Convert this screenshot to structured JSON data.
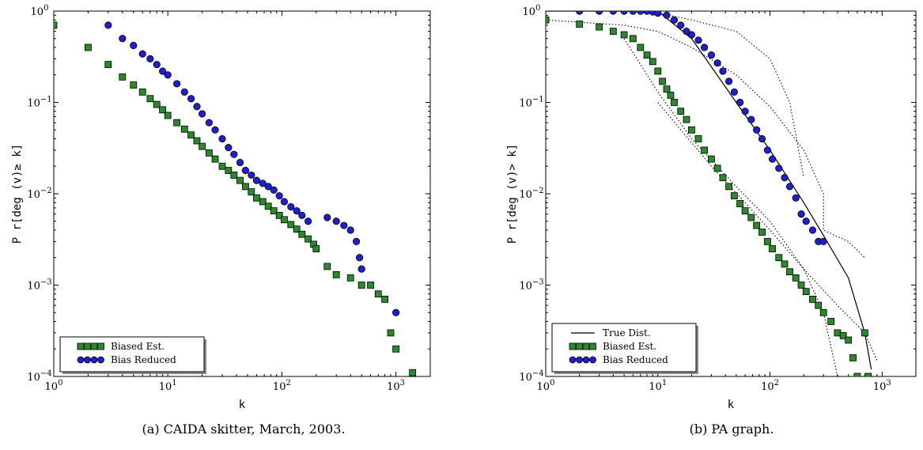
{
  "figure": {
    "panels": [
      {
        "caption": "(a) CAIDA skitter, March, 2003.",
        "chart_data": {
          "type": "scatter",
          "xscale": "log",
          "yscale": "log",
          "xlim": [
            1,
            2000
          ],
          "ylim": [
            0.0001,
            1
          ],
          "xlabel": "k",
          "ylabel": "P r[deg (v)≥ k]",
          "x_ticks": [
            1,
            10,
            100,
            1000
          ],
          "y_ticks": [
            0.0001,
            0.001,
            0.01,
            0.1,
            1
          ],
          "legend": {
            "placement": "bottom-left"
          },
          "series": [
            {
              "name": "Biased Est.",
              "marker": "square",
              "color": "#2a8a2a",
              "x": [
                1,
                2,
                3,
                4,
                5,
                6,
                7,
                8,
                9,
                10,
                12,
                14,
                16,
                18,
                20,
                23,
                26,
                30,
                34,
                38,
                43,
                48,
                54,
                60,
                68,
                76,
                85,
                95,
                105,
                120,
                135,
                150,
                170,
                190,
                200,
                250,
                300,
                400,
                500,
                600,
                700,
                800,
                900,
                1000,
                1400
              ],
              "y": [
                0.7,
                0.4,
                0.26,
                0.19,
                0.155,
                0.13,
                0.11,
                0.095,
                0.083,
                0.072,
                0.06,
                0.051,
                0.044,
                0.038,
                0.033,
                0.028,
                0.024,
                0.02,
                0.018,
                0.016,
                0.014,
                0.012,
                0.0105,
                0.009,
                0.0082,
                0.0073,
                0.0065,
                0.0058,
                0.0052,
                0.0046,
                0.0041,
                0.0036,
                0.0032,
                0.0028,
                0.0025,
                0.0016,
                0.0013,
                0.0012,
                0.001,
                0.001,
                0.0008,
                0.0007,
                0.0003,
                0.0002,
                0.00011
              ]
            },
            {
              "name": "Bias Reduced",
              "marker": "circle",
              "color": "#1f1fd0",
              "x": [
                3,
                4,
                5,
                6,
                7,
                8,
                9,
                10,
                12,
                14,
                16,
                18,
                20,
                23,
                26,
                30,
                34,
                38,
                43,
                48,
                54,
                60,
                68,
                76,
                85,
                95,
                105,
                120,
                135,
                150,
                170,
                250,
                300,
                350,
                400,
                450,
                480,
                500,
                1000
              ],
              "y": [
                0.7,
                0.5,
                0.42,
                0.34,
                0.3,
                0.26,
                0.22,
                0.2,
                0.16,
                0.13,
                0.11,
                0.09,
                0.075,
                0.06,
                0.05,
                0.04,
                0.032,
                0.027,
                0.022,
                0.018,
                0.016,
                0.014,
                0.013,
                0.012,
                0.011,
                0.0095,
                0.0082,
                0.0072,
                0.0065,
                0.0058,
                0.005,
                0.0055,
                0.005,
                0.0045,
                0.004,
                0.003,
                0.002,
                0.0015,
                0.0005
              ]
            }
          ]
        }
      },
      {
        "caption": "(b) PA graph.",
        "chart_data": {
          "type": "scatter",
          "xscale": "log",
          "yscale": "log",
          "xlim": [
            1,
            2000
          ],
          "ylim": [
            0.0001,
            1
          ],
          "xlabel": "k",
          "ylabel": "P r[deg (v)> k]",
          "x_ticks": [
            1,
            10,
            100,
            1000
          ],
          "y_ticks": [
            0.0001,
            0.001,
            0.01,
            0.1,
            1
          ],
          "legend": {
            "placement": "bottom-left"
          },
          "lines": [
            {
              "name": "True Dist.",
              "style": "solid",
              "x": [
                1,
                10,
                20,
                50,
                100,
                200,
                300,
                500,
                700,
                800
              ],
              "y": [
                1,
                1,
                0.5,
                0.1,
                0.03,
                0.008,
                0.0035,
                0.0012,
                0.0003,
                0.00012
              ]
            },
            {
              "name": "",
              "style": "dotted",
              "x": [
                1,
                5,
                10,
                20,
                50,
                100,
                200,
                300,
                300,
                500,
                700
              ],
              "y": [
                0.8,
                0.7,
                0.6,
                0.4,
                0.2,
                0.09,
                0.03,
                0.01,
                0.004,
                0.003,
                0.002
              ]
            },
            {
              "name": "",
              "style": "dotted",
              "x": [
                1,
                5,
                10,
                20,
                50,
                100,
                150,
                200
              ],
              "y": [
                1,
                1,
                0.95,
                0.8,
                0.6,
                0.3,
                0.1,
                0.015
              ]
            },
            {
              "name": "",
              "style": "dotted",
              "x": [
                5,
                10,
                20,
                50,
                100,
                200,
                300,
                400
              ],
              "y": [
                0.5,
                0.13,
                0.04,
                0.012,
                0.005,
                0.0015,
                0.0005,
                0.0001
              ]
            },
            {
              "name": "",
              "style": "dotted",
              "x": [
                10,
                30,
                60,
                100,
                200,
                400,
                700,
                900
              ],
              "y": [
                0.1,
                0.02,
                0.008,
                0.004,
                0.0015,
                0.0006,
                0.0003,
                0.00015
              ]
            }
          ],
          "series": [
            {
              "name": "Biased Est.",
              "marker": "square",
              "color": "#2a8a2a",
              "x": [
                1,
                2,
                3,
                4,
                5,
                6,
                7,
                8,
                9,
                10,
                11,
                12,
                13,
                14,
                16,
                18,
                20,
                23,
                26,
                30,
                34,
                38,
                43,
                48,
                54,
                60,
                68,
                76,
                85,
                95,
                105,
                120,
                135,
                150,
                170,
                190,
                210,
                240,
                270,
                300,
                350,
                400,
                450,
                500,
                550,
                600,
                700,
                750
              ],
              "y": [
                0.8,
                0.72,
                0.67,
                0.6,
                0.55,
                0.5,
                0.4,
                0.33,
                0.28,
                0.22,
                0.17,
                0.14,
                0.12,
                0.1,
                0.08,
                0.065,
                0.05,
                0.04,
                0.03,
                0.024,
                0.019,
                0.015,
                0.012,
                0.0095,
                0.0078,
                0.0065,
                0.0055,
                0.0045,
                0.0038,
                0.003,
                0.0025,
                0.002,
                0.0017,
                0.0014,
                0.0012,
                0.001,
                0.00085,
                0.0007,
                0.0006,
                0.0005,
                0.0004,
                0.0003,
                0.00028,
                0.00025,
                0.00016,
                0.0001,
                0.0003,
                0.0001
              ]
            },
            {
              "name": "Bias Reduced",
              "marker": "circle",
              "color": "#1f1fd0",
              "x": [
                2,
                3,
                4,
                5,
                6,
                7,
                8,
                9,
                10,
                12,
                14,
                16,
                18,
                20,
                23,
                26,
                30,
                34,
                38,
                43,
                48,
                54,
                60,
                68,
                76,
                85,
                95,
                105,
                120,
                135,
                150,
                170,
                190,
                210,
                240,
                270,
                300
              ],
              "y": [
                1,
                1,
                1,
                1,
                1,
                1,
                1,
                0.98,
                0.95,
                0.9,
                0.8,
                0.7,
                0.6,
                0.55,
                0.48,
                0.4,
                0.33,
                0.27,
                0.22,
                0.17,
                0.13,
                0.1,
                0.08,
                0.065,
                0.05,
                0.04,
                0.03,
                0.024,
                0.019,
                0.015,
                0.012,
                0.009,
                0.006,
                0.005,
                0.004,
                0.003,
                0.003
              ]
            }
          ]
        }
      }
    ]
  }
}
